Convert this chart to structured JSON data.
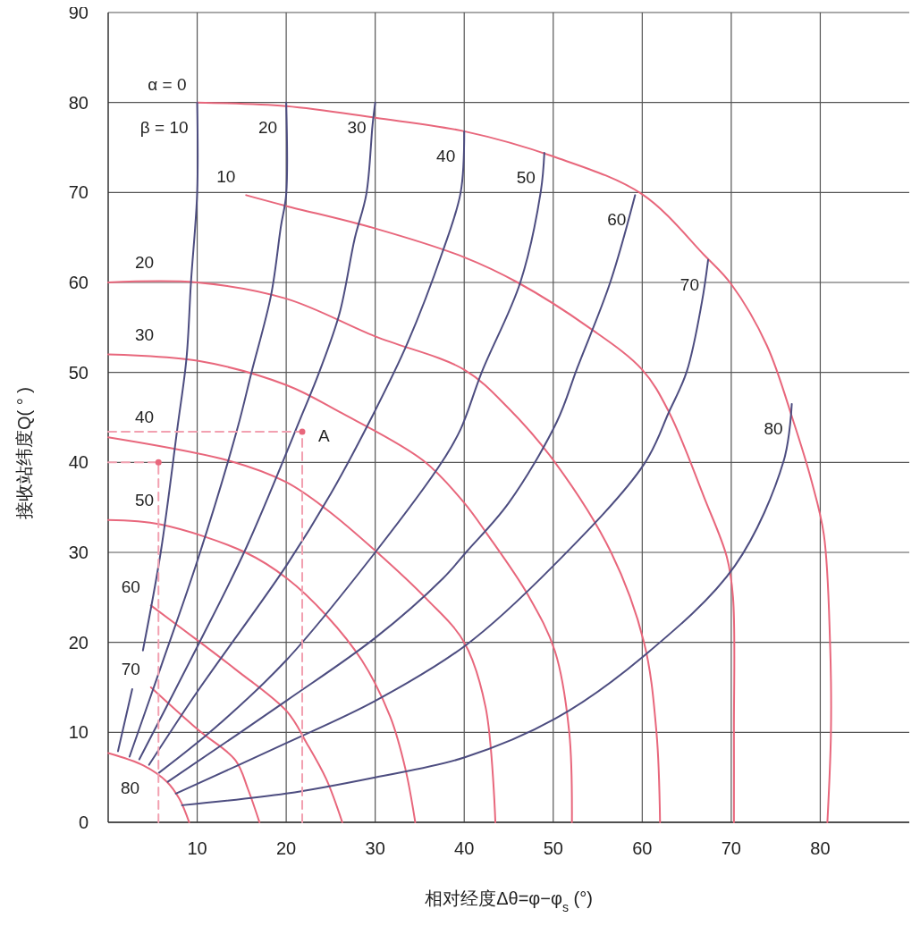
{
  "chart_data": {
    "type": "line",
    "xlabel": "相对经度Δθ=φ−φ$_{s}$ (°)",
    "ylabel": "接收站纬度Q( ° )",
    "xlim": [
      0,
      90
    ],
    "ylim": [
      0,
      90
    ],
    "xticks": [
      10,
      20,
      30,
      40,
      50,
      60,
      70,
      80
    ],
    "yticks": [
      0,
      10,
      20,
      30,
      40,
      50,
      60,
      70,
      80,
      90
    ],
    "grid": true,
    "series": [
      {
        "name": "α = 0",
        "color": "#e8677c",
        "x": [
          10,
          20,
          30,
          40,
          50,
          60,
          67,
          70,
          74,
          77,
          79,
          80.4,
          81.1,
          81.2,
          80.8
        ],
        "values": [
          80,
          79.6,
          78.3,
          76.8,
          74,
          69.8,
          63,
          59.8,
          53,
          44.5,
          38,
          32,
          20,
          10,
          0
        ]
      },
      {
        "name": "10",
        "color": "#e8677c",
        "x": [
          15.5,
          20,
          30,
          40,
          46,
          54,
          60,
          63,
          67,
          69.5,
          70.2,
          70.3,
          70.3
        ],
        "values": [
          69.7,
          68.5,
          66,
          62.8,
          60,
          55,
          50.3,
          45.6,
          36,
          29.5,
          25,
          10,
          0
        ]
      },
      {
        "name": "20",
        "color": "#e8677c",
        "x": [
          0,
          10,
          20,
          30,
          40,
          45,
          50.2,
          56.5,
          60.2,
          61.6,
          62
        ],
        "values": [
          60,
          60,
          58.2,
          54,
          50.3,
          46,
          40,
          30,
          20,
          10,
          0
        ]
      },
      {
        "name": "30",
        "color": "#e8677c",
        "x": [
          0,
          10,
          20,
          26,
          35.4,
          40,
          42.6,
          47.2,
          50.2,
          51.8,
          52.1
        ],
        "values": [
          52,
          51.3,
          48.6,
          45.6,
          40.2,
          35.5,
          32,
          25.2,
          19,
          10,
          0
        ]
      },
      {
        "name": "40",
        "color": "#e8677c",
        "x": [
          0,
          13.5,
          20,
          24.5,
          30,
          35.8,
          40,
          42.4,
          43.5
        ],
        "values": [
          42.8,
          40.2,
          37.8,
          34.8,
          30.2,
          24.8,
          20,
          12.8,
          0
        ]
      },
      {
        "name": "50",
        "color": "#e8677c",
        "x": [
          0,
          5.9,
          15.4,
          20.1,
          24.5,
          28.5,
          31.7,
          33.4,
          34.5
        ],
        "values": [
          33.6,
          33.1,
          30,
          27.1,
          23,
          18,
          11.7,
          5.9,
          0
        ]
      },
      {
        "name": "60",
        "color": "#e8677c",
        "x": [
          4.8,
          10.2,
          14.3,
          20.1,
          22.3,
          24.5,
          26.3
        ],
        "values": [
          24.1,
          20.1,
          17,
          12.3,
          8.8,
          4.8,
          0
        ]
      },
      {
        "name": "70",
        "color": "#e8677c",
        "x": [
          4.8,
          10.2,
          14.3,
          15.7,
          17
        ],
        "values": [
          15,
          10.2,
          6.9,
          3.7,
          0
        ]
      },
      {
        "name": "80",
        "color": "#e8677c",
        "x": [
          0,
          4,
          6.6,
          8,
          9.1
        ],
        "values": [
          7.7,
          6.3,
          4.5,
          2.6,
          0
        ]
      },
      {
        "name": "β = 10",
        "color": "#4d4d80",
        "x": [
          1.1,
          2.7,
          3.3,
          3.9,
          5.9,
          7.8,
          8.8,
          9.3,
          10,
          10
        ],
        "values": [
          7.9,
          14.8,
          null,
          19.1,
          30,
          44,
          51.6,
          60,
          70,
          80
        ]
      },
      {
        "name": "20",
        "color": "#4d4d80",
        "x": [
          2.4,
          6,
          10,
          14.5,
          16.1,
          18.3,
          19.4,
          20,
          20
        ],
        "values": [
          7.3,
          17.5,
          29,
          43.7,
          50,
          58.6,
          66.2,
          69.8,
          80
        ]
      },
      {
        "name": "30",
        "color": "#4d4d80",
        "x": [
          3.5,
          10,
          15.5,
          21.9,
          23.7,
          26,
          27.7,
          29,
          29.7,
          30
        ],
        "values": [
          7,
          19.5,
          30.5,
          45.6,
          50,
          56.6,
          64.9,
          69.8,
          77.5,
          80
        ]
      },
      {
        "name": "40",
        "color": "#4d4d80",
        "x": [
          4.6,
          10,
          20,
          25,
          29.6,
          33.6,
          37.6,
          39.6,
          40
        ],
        "values": [
          6.4,
          14.5,
          28.5,
          36.5,
          45,
          53.2,
          63.5,
          70,
          76.8
        ]
      },
      {
        "name": "50",
        "color": "#4d4d80",
        "x": [
          5.7,
          12,
          20,
          30,
          37.6,
          39.6,
          42,
          46.3,
          48.6,
          49
        ],
        "values": [
          5.5,
          10.5,
          18,
          30,
          40.2,
          43.7,
          50.1,
          60,
          70.1,
          74.4
        ]
      },
      {
        "name": "60",
        "color": "#4d4d80",
        "x": [
          6.7,
          20,
          30,
          37.6,
          40.2,
          45,
          50.4,
          52.7,
          56.4,
          59.2
        ],
        "values": [
          4.5,
          13.5,
          20.5,
          27.1,
          30,
          35.5,
          44.5,
          50.5,
          60,
          69.7
        ]
      },
      {
        "name": "70",
        "color": "#4d4d80",
        "x": [
          7.6,
          20,
          30,
          40.2,
          50,
          60.2,
          63,
          65,
          66.7,
          67.4
        ],
        "values": [
          3.2,
          8.8,
          13.5,
          19.7,
          28.5,
          39.8,
          45.6,
          50.1,
          57.8,
          62.5
        ]
      },
      {
        "name": "80",
        "color": "#4d4d80",
        "x": [
          8.3,
          20,
          30,
          40,
          50.2,
          60.2,
          70.4,
          75.9,
          76.8
        ],
        "values": [
          1.9,
          3.2,
          5,
          7.2,
          11.5,
          18.5,
          28.5,
          40.2,
          46.5
        ]
      },
      {
        "color": "#f2a0b0",
        "line_style": "dashed",
        "x": [
          0,
          21.8,
          21.8
        ],
        "values": [
          43.4,
          43.4,
          0
        ]
      },
      {
        "color": "#f2a0b0",
        "line_style": "dashed",
        "x": [
          0,
          5.65,
          5.65
        ],
        "values": [
          40,
          40,
          0
        ]
      },
      {
        "type": "scatter",
        "marker": "circle",
        "color": "#e8677c",
        "x": [
          21.8,
          5.65
        ],
        "values": [
          43.4,
          40
        ]
      }
    ],
    "annotations": [
      {
        "text": "A",
        "x": 21.8,
        "y": 43.4
      }
    ]
  }
}
